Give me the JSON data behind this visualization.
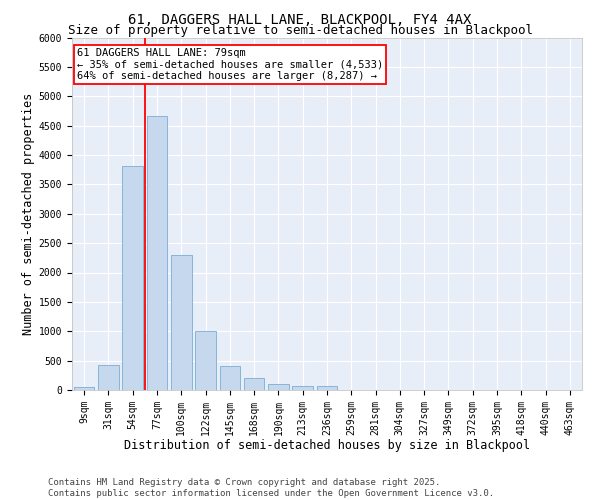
{
  "title": "61, DAGGERS HALL LANE, BLACKPOOL, FY4 4AX",
  "subtitle": "Size of property relative to semi-detached houses in Blackpool",
  "xlabel": "Distribution of semi-detached houses by size in Blackpool",
  "ylabel": "Number of semi-detached properties",
  "categories": [
    "9sqm",
    "31sqm",
    "54sqm",
    "77sqm",
    "100sqm",
    "122sqm",
    "145sqm",
    "168sqm",
    "190sqm",
    "213sqm",
    "236sqm",
    "259sqm",
    "281sqm",
    "304sqm",
    "327sqm",
    "349sqm",
    "372sqm",
    "395sqm",
    "418sqm",
    "440sqm",
    "463sqm"
  ],
  "values": [
    50,
    430,
    3820,
    4670,
    2290,
    1000,
    410,
    200,
    100,
    75,
    60,
    0,
    0,
    0,
    0,
    0,
    0,
    0,
    0,
    0,
    0
  ],
  "bar_color": "#c5d8ee",
  "bar_edge_color": "#7aadd4",
  "vline_color": "red",
  "vline_position": 2.5,
  "annotation_text": "61 DAGGERS HALL LANE: 79sqm\n← 35% of semi-detached houses are smaller (4,533)\n64% of semi-detached houses are larger (8,287) →",
  "annotation_box_color": "red",
  "ylim": [
    0,
    6000
  ],
  "yticks": [
    0,
    500,
    1000,
    1500,
    2000,
    2500,
    3000,
    3500,
    4000,
    4500,
    5000,
    5500,
    6000
  ],
  "bg_color": "#e8eef8",
  "grid_color": "white",
  "footer": "Contains HM Land Registry data © Crown copyright and database right 2025.\nContains public sector information licensed under the Open Government Licence v3.0.",
  "title_fontsize": 10,
  "subtitle_fontsize": 9,
  "axis_label_fontsize": 8.5,
  "tick_fontsize": 7,
  "annotation_fontsize": 7.5,
  "footer_fontsize": 6.5
}
